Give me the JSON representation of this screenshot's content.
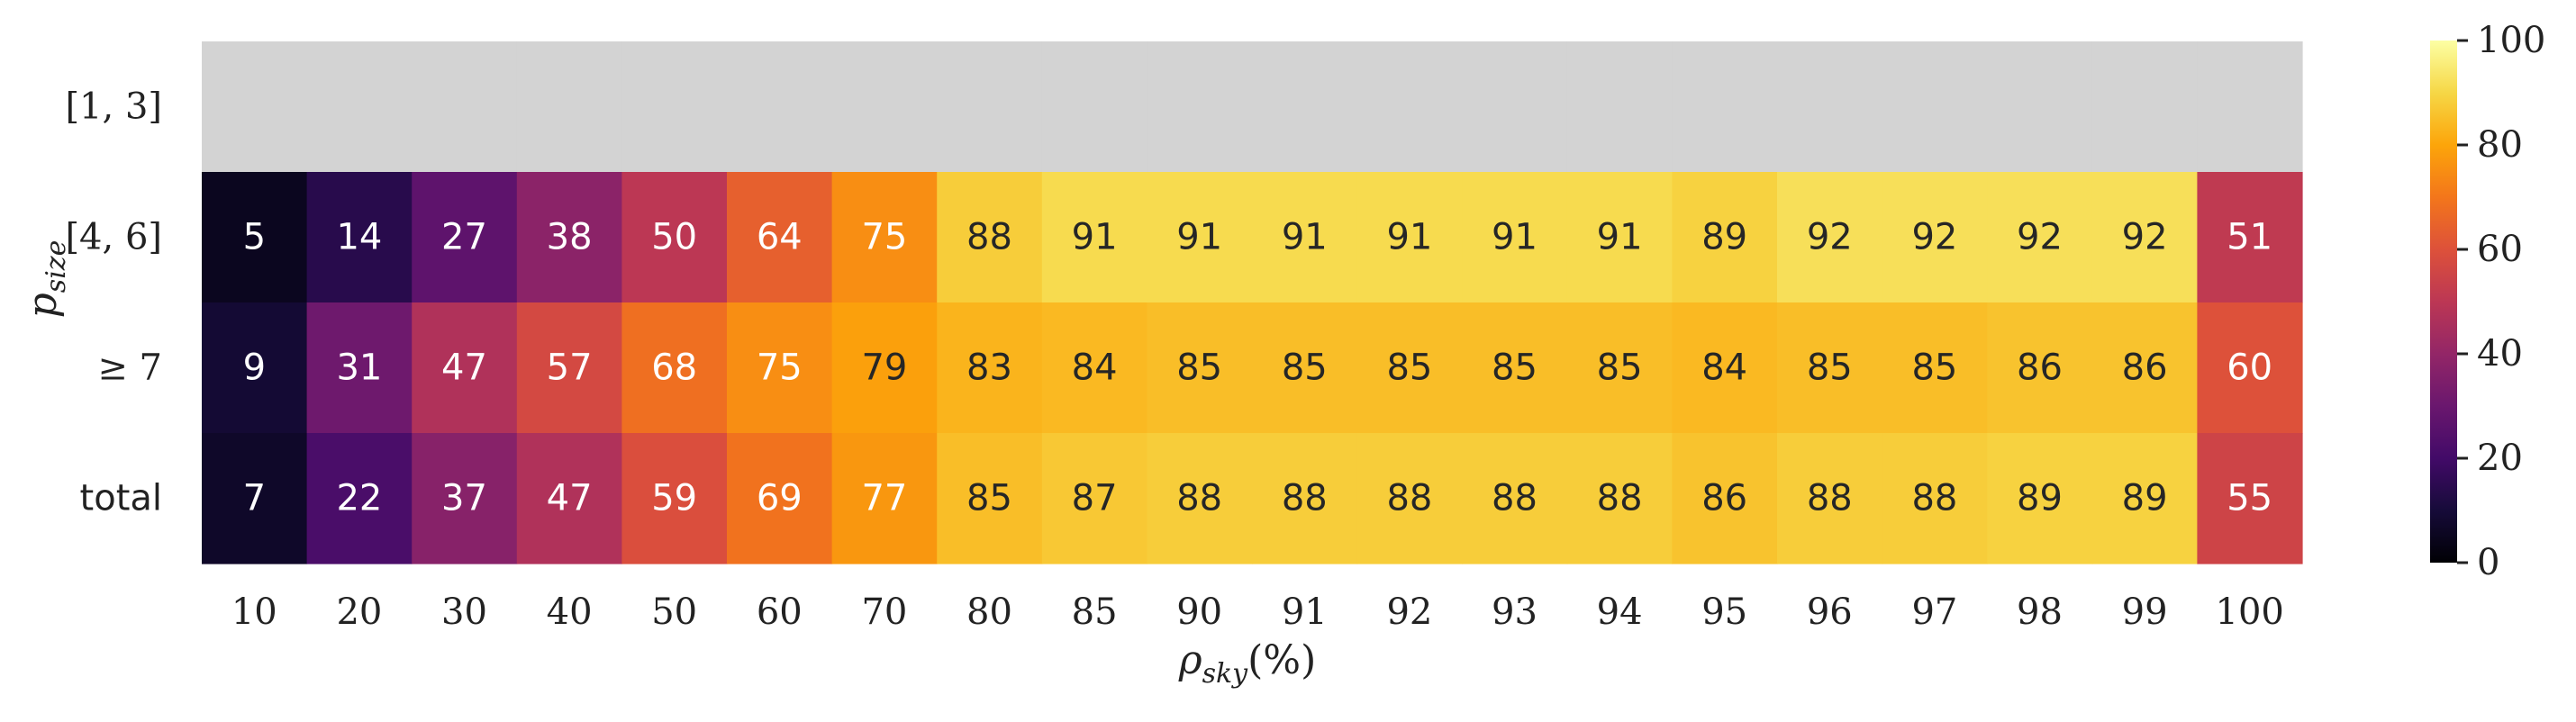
{
  "chart_data": {
    "type": "heatmap",
    "xlabel": "ρsky(%)",
    "ylabel": "psize",
    "x_categories": [
      "10",
      "20",
      "30",
      "40",
      "50",
      "60",
      "70",
      "80",
      "85",
      "90",
      "91",
      "92",
      "93",
      "94",
      "95",
      "96",
      "97",
      "98",
      "99",
      "100"
    ],
    "y_categories": [
      "[1, 3]",
      "[4, 6]",
      "≥ 7",
      "total"
    ],
    "values": [
      [
        null,
        null,
        null,
        null,
        null,
        null,
        null,
        null,
        null,
        null,
        null,
        null,
        null,
        null,
        null,
        null,
        null,
        null,
        null,
        null
      ],
      [
        5,
        14,
        27,
        38,
        50,
        64,
        75,
        88,
        91,
        91,
        91,
        91,
        91,
        91,
        89,
        92,
        92,
        92,
        92,
        51
      ],
      [
        9,
        31,
        47,
        57,
        68,
        75,
        79,
        83,
        84,
        85,
        85,
        85,
        85,
        85,
        84,
        85,
        85,
        86,
        86,
        60
      ],
      [
        7,
        22,
        37,
        47,
        59,
        69,
        77,
        85,
        87,
        88,
        88,
        88,
        88,
        88,
        86,
        88,
        88,
        89,
        89,
        55
      ]
    ],
    "missing_color": "#d3d3d3",
    "colormap": "inferno",
    "vmin": 0,
    "vmax": 100,
    "colorbar_ticks": [
      "0",
      "20",
      "40",
      "60",
      "80",
      "100"
    ]
  }
}
